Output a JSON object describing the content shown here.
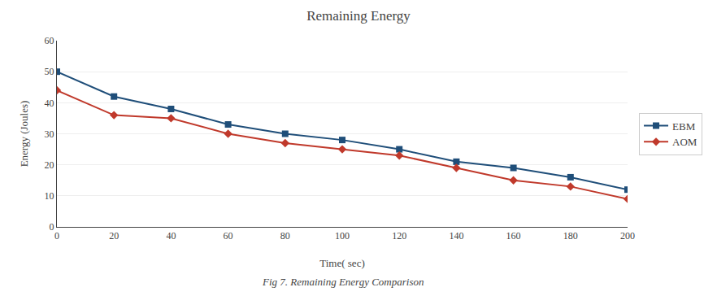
{
  "chart_data": {
    "type": "line",
    "title": "Remaining Energy",
    "x_label": "Time( sec)",
    "y_label": "Energy (Joules)",
    "annotations": [
      "Fig 7. Remaining Energy Comparison"
    ],
    "x": [
      0,
      20,
      40,
      60,
      80,
      100,
      120,
      140,
      160,
      180,
      200
    ],
    "series": [
      {
        "name": "EBM",
        "color": "#1F4E79",
        "marker": "square",
        "values": [
          50,
          42,
          38,
          33,
          30,
          28,
          25,
          21,
          19,
          16,
          12
        ]
      },
      {
        "name": "AOM",
        "color": "#C0392B",
        "marker": "diamond",
        "values": [
          44,
          36,
          35,
          30,
          27,
          25,
          23,
          19,
          15,
          13,
          9
        ]
      }
    ],
    "xlim": [
      0,
      200
    ],
    "xticks": [
      0,
      20,
      40,
      60,
      80,
      100,
      120,
      140,
      160,
      180,
      200
    ],
    "ylim": [
      0,
      60
    ],
    "yticks": [
      0,
      10,
      20,
      30,
      40,
      50,
      60
    ],
    "grid": "y",
    "legend": "right"
  }
}
